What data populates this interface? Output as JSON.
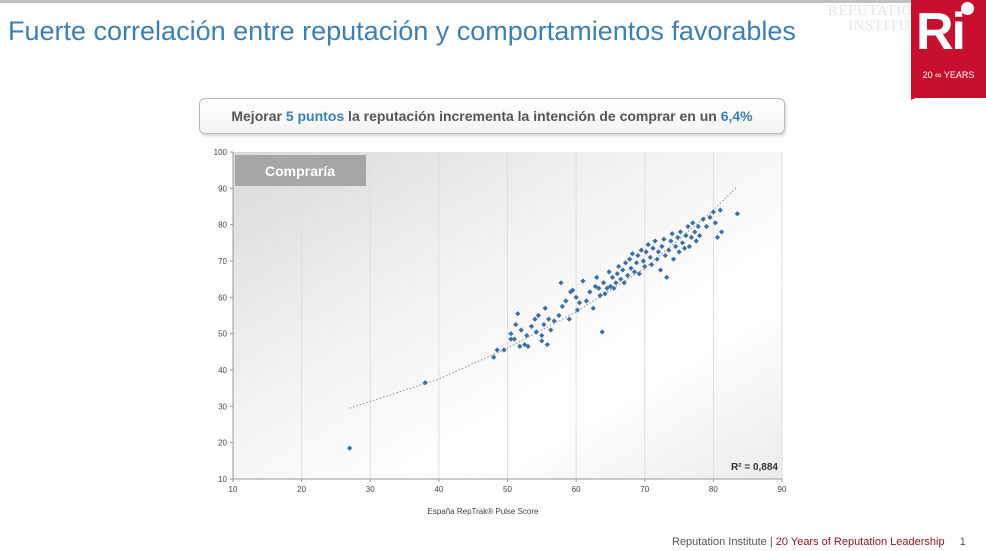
{
  "slide": {
    "title": "Fuerte correlación entre reputación y comportamientos favorables",
    "watermark_line1": "REPUTATION",
    "watermark_line2": "INSTITUTE"
  },
  "logo": {
    "letters": "Ri",
    "years_num": "20",
    "years_word": "YEARS",
    "brand_color": "#c8102e"
  },
  "callout": {
    "part1": "Mejorar ",
    "highlight1": "5 puntos",
    "part2": " la reputación incrementa la intención de comprar en un ",
    "highlight2": "6,4%",
    "highlight_color": "#3d7fb1"
  },
  "chart_data": {
    "type": "scatter",
    "title": "Compraría",
    "xlabel": "España RepTrak® Pulse Score",
    "ylabel": "",
    "xlim": [
      10,
      90
    ],
    "ylim": [
      10,
      100
    ],
    "xticks": [
      10,
      20,
      30,
      40,
      50,
      60,
      70,
      80,
      90
    ],
    "yticks": [
      10,
      20,
      30,
      40,
      50,
      60,
      70,
      80,
      90,
      100
    ],
    "r2_label": "R² = 0,884",
    "point_color": "#3a6ea5",
    "trendline": {
      "x": [
        27,
        40,
        50,
        60,
        70,
        80,
        83.5
      ],
      "y": [
        29.5,
        37.5,
        46,
        56,
        68,
        84,
        90.5
      ]
    },
    "points": [
      [
        27,
        18.5
      ],
      [
        38,
        36.5
      ],
      [
        48,
        43.5
      ],
      [
        48.5,
        45.5
      ],
      [
        49.5,
        45.5
      ],
      [
        50.5,
        48.5
      ],
      [
        50.5,
        50
      ],
      [
        51,
        48.5
      ],
      [
        51.2,
        52.5
      ],
      [
        51.5,
        55.5
      ],
      [
        51.8,
        46.5
      ],
      [
        52,
        51
      ],
      [
        52.5,
        47
      ],
      [
        52.8,
        49.5
      ],
      [
        53,
        46.5
      ],
      [
        53.5,
        52
      ],
      [
        54,
        54
      ],
      [
        54.2,
        50.5
      ],
      [
        54.5,
        55
      ],
      [
        55,
        48
      ],
      [
        55,
        49.5
      ],
      [
        55.3,
        52.5
      ],
      [
        55.5,
        57
      ],
      [
        55.8,
        47
      ],
      [
        56,
        54
      ],
      [
        56.3,
        51
      ],
      [
        56.8,
        53.5
      ],
      [
        57.5,
        55
      ],
      [
        57.8,
        64
      ],
      [
        58,
        57.5
      ],
      [
        58.5,
        59
      ],
      [
        59,
        54
      ],
      [
        59.2,
        61.5
      ],
      [
        59.5,
        62
      ],
      [
        60,
        60
      ],
      [
        60.2,
        56.5
      ],
      [
        60.5,
        58.5
      ],
      [
        61,
        64.5
      ],
      [
        61.5,
        59
      ],
      [
        62,
        61.5
      ],
      [
        62.5,
        57
      ],
      [
        62.8,
        63
      ],
      [
        63,
        65.5
      ],
      [
        63.3,
        62.5
      ],
      [
        63.5,
        60.5
      ],
      [
        63.8,
        50.5
      ],
      [
        64,
        64
      ],
      [
        64.2,
        61
      ],
      [
        64.5,
        62.5
      ],
      [
        64.8,
        67
      ],
      [
        65,
        63
      ],
      [
        65.3,
        65.5
      ],
      [
        65.5,
        62.5
      ],
      [
        65.8,
        64
      ],
      [
        66,
        66.5
      ],
      [
        66.2,
        68.5
      ],
      [
        66.5,
        65
      ],
      [
        66.8,
        67.5
      ],
      [
        67,
        64
      ],
      [
        67.2,
        69.5
      ],
      [
        67.5,
        66
      ],
      [
        67.8,
        70.5
      ],
      [
        68,
        68
      ],
      [
        68.2,
        72
      ],
      [
        68.5,
        67
      ],
      [
        68.8,
        69.5
      ],
      [
        69,
        71.5
      ],
      [
        69.2,
        66.5
      ],
      [
        69.5,
        73
      ],
      [
        69.8,
        70
      ],
      [
        70,
        68.5
      ],
      [
        70.2,
        72.5
      ],
      [
        70.5,
        74.5
      ],
      [
        70.8,
        71
      ],
      [
        71,
        69
      ],
      [
        71.2,
        73.5
      ],
      [
        71.5,
        75.5
      ],
      [
        71.8,
        70.5
      ],
      [
        72,
        72.5
      ],
      [
        72.3,
        67.5
      ],
      [
        72.5,
        74
      ],
      [
        72.8,
        76
      ],
      [
        73,
        71.5
      ],
      [
        73.2,
        65.5
      ],
      [
        73.5,
        73
      ],
      [
        73.8,
        75.5
      ],
      [
        74,
        77.5
      ],
      [
        74.2,
        70.5
      ],
      [
        74.5,
        74
      ],
      [
        74.8,
        76.5
      ],
      [
        75,
        72.5
      ],
      [
        75.2,
        78
      ],
      [
        75.5,
        75
      ],
      [
        75.8,
        73.5
      ],
      [
        76,
        77
      ],
      [
        76.3,
        79.5
      ],
      [
        76.5,
        74
      ],
      [
        76.8,
        76.5
      ],
      [
        77,
        80.5
      ],
      [
        77.3,
        78
      ],
      [
        77.5,
        75.5
      ],
      [
        77.8,
        79.5
      ],
      [
        78,
        77
      ],
      [
        78.5,
        81.5
      ],
      [
        79,
        79.5
      ],
      [
        79.5,
        82
      ],
      [
        80,
        83.5
      ],
      [
        80.3,
        80.5
      ],
      [
        80.6,
        76.5
      ],
      [
        81,
        84
      ],
      [
        81.2,
        78
      ],
      [
        83.5,
        83
      ]
    ]
  },
  "footer": {
    "org": "Reputation Institute",
    "separator": "|",
    "tagline": "20 Years of Reputation Leadership",
    "page": "1"
  }
}
